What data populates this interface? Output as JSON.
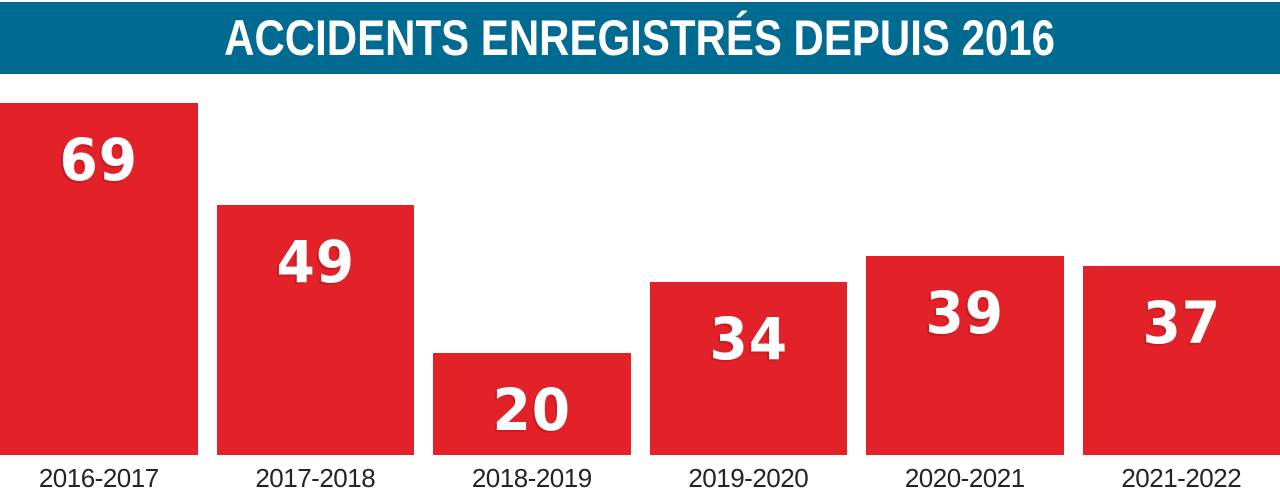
{
  "chart_data": {
    "type": "bar",
    "title": "ACCIDENTS ENREGISTRÉS DEPUIS 2016",
    "categories": [
      "2016-2017",
      "2017-2018",
      "2018-2019",
      "2019-2020",
      "2020-2021",
      "2021-2022"
    ],
    "values": [
      69,
      49,
      20,
      34,
      39,
      37
    ],
    "xlabel": "",
    "ylabel": "",
    "ylim": [
      0,
      69
    ],
    "grid": false,
    "legend": false,
    "value_labels": "inside-bar-top",
    "orientation": "vertical"
  },
  "colors": {
    "banner_bg": "#006a90",
    "banner_text": "#ffffff",
    "bar": "#e32128",
    "value_text": "#ffffff",
    "category_text": "#21242b",
    "background": "#ffffff"
  }
}
